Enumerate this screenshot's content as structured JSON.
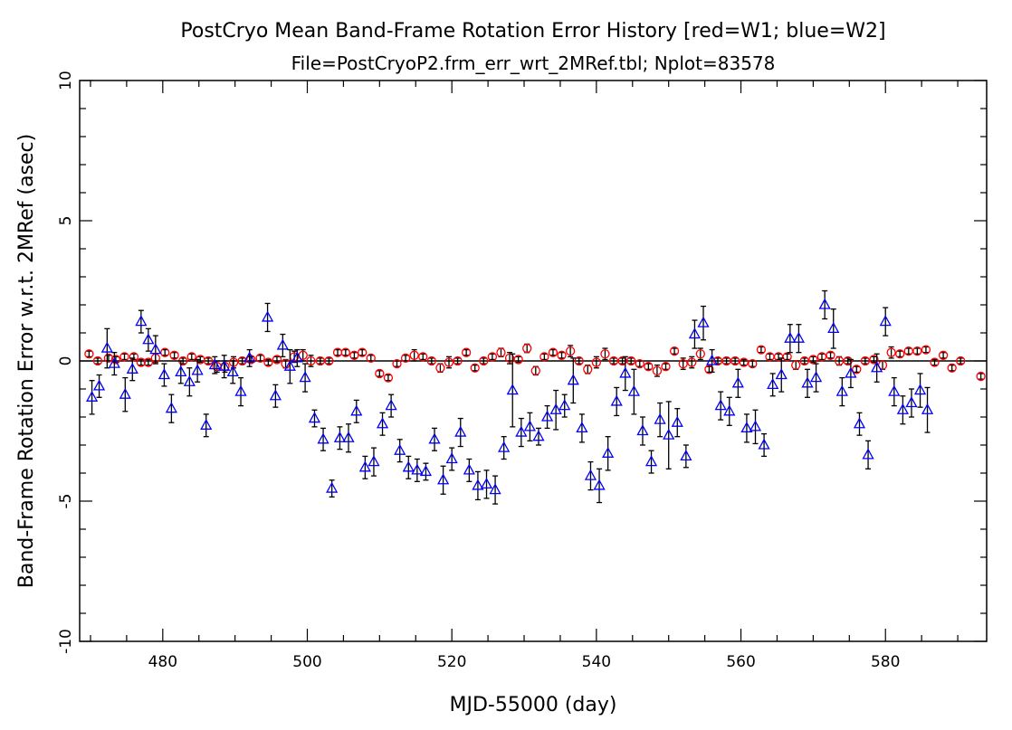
{
  "chart_data": {
    "type": "scatter",
    "title": "PostCryo Mean Band-Frame Rotation Error History [red=W1; blue=W2]",
    "subtitle": "File=PostCryoP2.frm_err_wrt_2MRef.tbl; Nplot=83578",
    "xlabel": "MJD-55000 (day)",
    "ylabel": "Band-Frame Rotation Error w.r.t. 2MRef (asec)",
    "xlim": [
      468.5,
      594
    ],
    "ylim": [
      -10,
      10
    ],
    "xticks": [
      480,
      500,
      520,
      540,
      560,
      580
    ],
    "yticks": [
      -10,
      -5,
      0,
      5,
      10
    ],
    "grid": false,
    "reference_line": 0,
    "colors": {
      "W1": "#ff0000",
      "W2": "#0000ff",
      "errorbar": "#000000"
    },
    "series": [
      {
        "name": "W1",
        "marker": "circle",
        "points": [
          [
            469.8,
            0.25,
            0.1
          ],
          [
            471.0,
            0.0,
            0.1
          ],
          [
            472.5,
            0.1,
            0.1
          ],
          [
            473.5,
            0.05,
            0.1
          ],
          [
            474.7,
            0.15,
            0.1
          ],
          [
            476.0,
            0.15,
            0.1
          ],
          [
            477.0,
            -0.05,
            0.1
          ],
          [
            478.0,
            -0.05,
            0.1
          ],
          [
            479.0,
            0.1,
            0.15
          ],
          [
            480.3,
            0.3,
            0.1
          ],
          [
            481.6,
            0.2,
            0.1
          ],
          [
            482.8,
            0.0,
            0.1
          ],
          [
            484.0,
            0.15,
            0.1
          ],
          [
            485.2,
            0.05,
            0.1
          ],
          [
            486.3,
            0.0,
            0.1
          ],
          [
            487.5,
            -0.2,
            0.2
          ],
          [
            488.6,
            -0.2,
            0.2
          ],
          [
            489.8,
            -0.05,
            0.2
          ],
          [
            491.0,
            0.0,
            0.1
          ],
          [
            492.2,
            0.05,
            0.1
          ],
          [
            493.5,
            0.1,
            0.1
          ],
          [
            494.6,
            -0.05,
            0.1
          ],
          [
            495.8,
            0.05,
            0.1
          ],
          [
            497.0,
            -0.1,
            0.15
          ],
          [
            498.2,
            0.15,
            0.2
          ],
          [
            499.4,
            0.2,
            0.2
          ],
          [
            500.5,
            0.0,
            0.2
          ],
          [
            501.8,
            0.0,
            0.1
          ],
          [
            503.0,
            0.0,
            0.1
          ],
          [
            504.2,
            0.3,
            0.1
          ],
          [
            505.3,
            0.3,
            0.1
          ],
          [
            506.5,
            0.2,
            0.1
          ],
          [
            507.6,
            0.3,
            0.1
          ],
          [
            508.8,
            0.1,
            0.1
          ],
          [
            510.0,
            -0.45,
            0.1
          ],
          [
            511.2,
            -0.6,
            0.1
          ],
          [
            512.4,
            -0.1,
            0.1
          ],
          [
            513.6,
            0.1,
            0.1
          ],
          [
            514.8,
            0.2,
            0.2
          ],
          [
            516.0,
            0.15,
            0.1
          ],
          [
            517.2,
            0.0,
            0.1
          ],
          [
            518.4,
            -0.25,
            0.15
          ],
          [
            519.6,
            -0.05,
            0.2
          ],
          [
            520.8,
            0.0,
            0.1
          ],
          [
            522.0,
            0.3,
            0.1
          ],
          [
            523.2,
            -0.25,
            0.1
          ],
          [
            524.4,
            0.0,
            0.1
          ],
          [
            525.6,
            0.15,
            0.1
          ],
          [
            526.8,
            0.3,
            0.15
          ],
          [
            528.0,
            0.1,
            0.2
          ],
          [
            529.2,
            0.05,
            0.1
          ],
          [
            530.4,
            0.45,
            0.15
          ],
          [
            531.6,
            -0.35,
            0.15
          ],
          [
            532.8,
            0.15,
            0.1
          ],
          [
            534.0,
            0.3,
            0.1
          ],
          [
            535.2,
            0.2,
            0.1
          ],
          [
            536.4,
            0.35,
            0.2
          ],
          [
            537.6,
            0.0,
            0.1
          ],
          [
            538.8,
            -0.3,
            0.15
          ],
          [
            540.0,
            -0.05,
            0.2
          ],
          [
            541.2,
            0.25,
            0.2
          ],
          [
            542.4,
            0.0,
            0.1
          ],
          [
            543.6,
            0.0,
            0.1
          ],
          [
            544.8,
            0.0,
            0.1
          ],
          [
            546.0,
            -0.1,
            0.1
          ],
          [
            547.2,
            -0.2,
            0.1
          ],
          [
            548.4,
            -0.35,
            0.2
          ],
          [
            549.6,
            -0.2,
            0.1
          ],
          [
            550.8,
            0.35,
            0.1
          ],
          [
            552.0,
            -0.1,
            0.2
          ],
          [
            553.2,
            -0.05,
            0.2
          ],
          [
            554.4,
            0.25,
            0.2
          ],
          [
            555.6,
            -0.3,
            0.1
          ],
          [
            556.8,
            0.0,
            0.1
          ],
          [
            558.0,
            0.0,
            0.1
          ],
          [
            559.2,
            0.0,
            0.1
          ],
          [
            560.4,
            -0.05,
            0.1
          ],
          [
            561.6,
            -0.1,
            0.1
          ],
          [
            562.8,
            0.4,
            0.1
          ],
          [
            564.0,
            0.15,
            0.1
          ],
          [
            565.2,
            0.15,
            0.1
          ],
          [
            566.4,
            0.15,
            0.1
          ],
          [
            567.6,
            -0.15,
            0.15
          ],
          [
            568.8,
            0.0,
            0.1
          ],
          [
            570.0,
            0.05,
            0.1
          ],
          [
            571.2,
            0.15,
            0.1
          ],
          [
            572.4,
            0.2,
            0.1
          ],
          [
            573.6,
            0.0,
            0.15
          ],
          [
            574.8,
            0.0,
            0.1
          ],
          [
            576.0,
            -0.3,
            0.1
          ],
          [
            577.2,
            0.0,
            0.1
          ],
          [
            578.4,
            0.05,
            0.1
          ],
          [
            579.6,
            -0.15,
            0.15
          ],
          [
            580.8,
            0.3,
            0.2
          ],
          [
            582.0,
            0.25,
            0.1
          ],
          [
            583.2,
            0.35,
            0.1
          ],
          [
            584.4,
            0.35,
            0.1
          ],
          [
            585.6,
            0.4,
            0.1
          ],
          [
            586.8,
            -0.05,
            0.1
          ],
          [
            588.0,
            0.2,
            0.1
          ],
          [
            589.2,
            -0.25,
            0.1
          ],
          [
            590.4,
            0.0,
            0.1
          ],
          [
            593.2,
            -0.55,
            0.1
          ]
        ]
      },
      {
        "name": "W2",
        "marker": "triangle",
        "points": [
          [
            470.2,
            -1.3,
            0.6
          ],
          [
            471.2,
            -0.9,
            0.4
          ],
          [
            472.3,
            0.45,
            0.7
          ],
          [
            473.3,
            -0.1,
            0.4
          ],
          [
            474.8,
            -1.2,
            0.6
          ],
          [
            475.8,
            -0.3,
            0.4
          ],
          [
            477.0,
            1.4,
            0.4
          ],
          [
            478.0,
            0.75,
            0.4
          ],
          [
            479.0,
            0.4,
            0.5
          ],
          [
            480.2,
            -0.5,
            0.4
          ],
          [
            481.2,
            -1.7,
            0.5
          ],
          [
            482.5,
            -0.4,
            0.4
          ],
          [
            483.7,
            -0.75,
            0.5
          ],
          [
            484.8,
            -0.35,
            0.4
          ],
          [
            486.0,
            -2.3,
            0.4
          ],
          [
            487.2,
            -0.15,
            0.3
          ],
          [
            488.5,
            -0.2,
            0.4
          ],
          [
            489.7,
            -0.4,
            0.4
          ],
          [
            490.8,
            -1.1,
            0.5
          ],
          [
            492.0,
            0.1,
            0.3
          ],
          [
            494.5,
            1.55,
            0.5
          ],
          [
            495.6,
            -1.25,
            0.4
          ],
          [
            496.6,
            0.55,
            0.4
          ],
          [
            497.6,
            -0.2,
            0.6
          ],
          [
            498.6,
            0.1,
            0.3
          ],
          [
            499.7,
            -0.6,
            0.5
          ],
          [
            501.0,
            -2.05,
            0.3
          ],
          [
            502.2,
            -2.8,
            0.4
          ],
          [
            503.4,
            -4.55,
            0.3
          ],
          [
            504.5,
            -2.75,
            0.4
          ],
          [
            505.7,
            -2.75,
            0.5
          ],
          [
            506.8,
            -1.8,
            0.4
          ],
          [
            508.0,
            -3.8,
            0.4
          ],
          [
            509.2,
            -3.6,
            0.5
          ],
          [
            510.4,
            -2.25,
            0.4
          ],
          [
            511.6,
            -1.6,
            0.4
          ],
          [
            512.8,
            -3.2,
            0.4
          ],
          [
            514.0,
            -3.8,
            0.4
          ],
          [
            515.2,
            -3.9,
            0.4
          ],
          [
            516.4,
            -3.95,
            0.3
          ],
          [
            517.6,
            -2.8,
            0.4
          ],
          [
            518.8,
            -4.25,
            0.5
          ],
          [
            520.0,
            -3.5,
            0.4
          ],
          [
            521.2,
            -2.55,
            0.5
          ],
          [
            522.4,
            -3.9,
            0.4
          ],
          [
            523.6,
            -4.45,
            0.5
          ],
          [
            524.8,
            -4.4,
            0.5
          ],
          [
            526.0,
            -4.6,
            0.5
          ],
          [
            527.2,
            -3.1,
            0.4
          ],
          [
            528.4,
            -1.05,
            1.3
          ],
          [
            529.6,
            -2.55,
            0.5
          ],
          [
            530.8,
            -2.35,
            0.5
          ],
          [
            532.0,
            -2.7,
            0.3
          ],
          [
            533.2,
            -2.0,
            0.4
          ],
          [
            534.4,
            -1.75,
            0.7
          ],
          [
            535.6,
            -1.6,
            0.4
          ],
          [
            536.8,
            -0.7,
            0.8
          ],
          [
            538.0,
            -2.4,
            0.5
          ],
          [
            539.2,
            -4.1,
            0.5
          ],
          [
            540.4,
            -4.45,
            0.6
          ],
          [
            541.6,
            -3.3,
            0.6
          ],
          [
            542.8,
            -1.45,
            0.5
          ],
          [
            544.0,
            -0.45,
            0.6
          ],
          [
            545.2,
            -1.1,
            0.8
          ],
          [
            546.4,
            -2.5,
            0.5
          ],
          [
            547.6,
            -3.6,
            0.4
          ],
          [
            548.8,
            -2.1,
            0.6
          ],
          [
            550.0,
            -2.65,
            1.2
          ],
          [
            551.2,
            -2.2,
            0.5
          ],
          [
            552.4,
            -3.4,
            0.4
          ],
          [
            553.6,
            0.95,
            0.5
          ],
          [
            554.8,
            1.35,
            0.6
          ],
          [
            556.0,
            0.0,
            0.4
          ],
          [
            557.2,
            -1.6,
            0.5
          ],
          [
            558.4,
            -1.8,
            0.5
          ],
          [
            559.6,
            -0.8,
            0.5
          ],
          [
            560.8,
            -2.4,
            0.5
          ],
          [
            562.0,
            -2.35,
            0.6
          ],
          [
            563.2,
            -3.0,
            0.4
          ],
          [
            564.4,
            -0.85,
            0.4
          ],
          [
            565.6,
            -0.5,
            0.6
          ],
          [
            566.8,
            0.8,
            0.5
          ],
          [
            568.0,
            0.8,
            0.5
          ],
          [
            569.2,
            -0.8,
            0.5
          ],
          [
            570.4,
            -0.6,
            0.5
          ],
          [
            571.6,
            2.0,
            0.5
          ],
          [
            572.8,
            1.15,
            0.7
          ],
          [
            574.0,
            -1.1,
            0.5
          ],
          [
            575.2,
            -0.45,
            0.5
          ],
          [
            576.4,
            -2.25,
            0.4
          ],
          [
            577.6,
            -3.35,
            0.5
          ],
          [
            578.8,
            -0.25,
            0.5
          ],
          [
            580.0,
            1.4,
            0.5
          ],
          [
            581.2,
            -1.1,
            0.5
          ],
          [
            582.4,
            -1.75,
            0.5
          ],
          [
            583.6,
            -1.5,
            0.5
          ],
          [
            584.8,
            -1.05,
            0.6
          ],
          [
            585.8,
            -1.75,
            0.8
          ]
        ]
      }
    ]
  }
}
